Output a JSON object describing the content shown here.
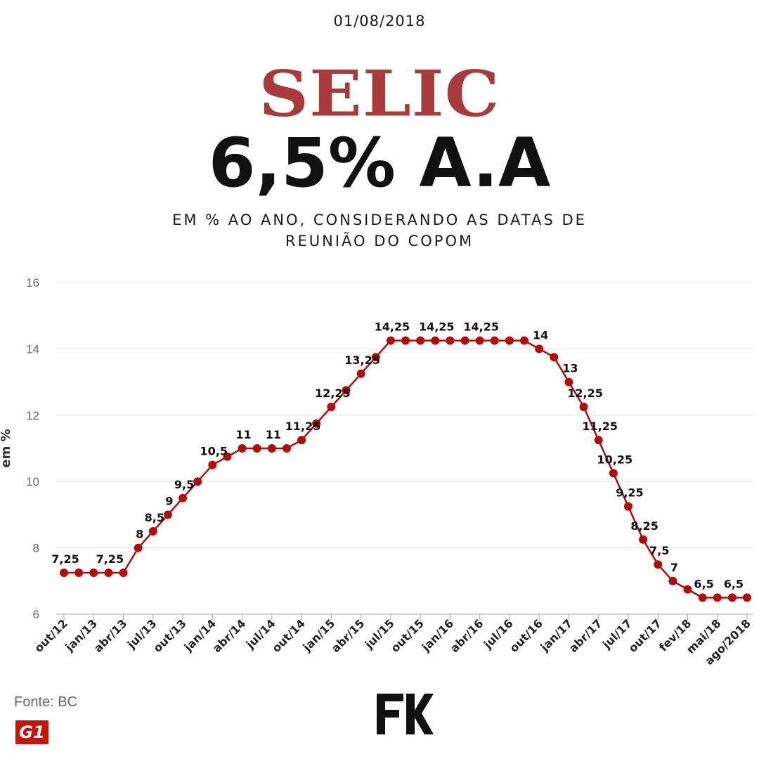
{
  "header": {
    "date": "01/08/2018",
    "title": "SELIC",
    "headline": "6,5% A.A",
    "subtitle_line1": "EM % AO ANO, CONSIDERANDO AS DATAS DE",
    "subtitle_line2": "REUNIÃO DO COPOM"
  },
  "footer": {
    "source": "Fonte: BC",
    "g1_logo_text": "G1",
    "fk_logo": "fk-logo-icon"
  },
  "colors": {
    "line": "#b00d0d",
    "title": "#a83a3c",
    "grid": "#e0e0e0"
  },
  "chart_data": {
    "type": "line",
    "ylabel": "em %",
    "xlabel": "",
    "ylim": [
      6,
      16
    ],
    "yticks": [
      6,
      8,
      10,
      12,
      14,
      16
    ],
    "grid": true,
    "x_tick_labels": [
      "out/12",
      "jan/13",
      "abr/13",
      "jul/13",
      "out/13",
      "jan/14",
      "abr/14",
      "jul/14",
      "out/14",
      "jan/15",
      "abr/15",
      "jul/15",
      "out/15",
      "jan/16",
      "abr/16",
      "jul/16",
      "out/16",
      "jan/17",
      "abr/17",
      "jul/17",
      "out/17",
      "fev/18",
      "mai/18",
      "ago/2018"
    ],
    "series": [
      {
        "values": [
          7.25,
          7.25,
          7.25,
          7.25,
          7.25,
          8,
          8.5,
          9,
          9.5,
          10,
          10.5,
          10.75,
          11,
          11,
          11,
          11,
          11.25,
          11.75,
          12.25,
          12.75,
          13.25,
          13.75,
          14.25,
          14.25,
          14.25,
          14.25,
          14.25,
          14.25,
          14.25,
          14.25,
          14.25,
          14.25,
          14,
          13.75,
          13,
          12.25,
          11.25,
          10.25,
          9.25,
          8.25,
          7.5,
          7,
          6.75,
          6.5,
          6.5,
          6.5,
          6.5
        ]
      }
    ],
    "data_labels": [
      {
        "i": 0,
        "text": "7,25"
      },
      {
        "i": 3,
        "text": "7,25"
      },
      {
        "i": 5,
        "text": "8"
      },
      {
        "i": 6,
        "text": "8,5"
      },
      {
        "i": 7,
        "text": "9"
      },
      {
        "i": 8,
        "text": "9,5"
      },
      {
        "i": 10,
        "text": "10,5"
      },
      {
        "i": 12,
        "text": "11"
      },
      {
        "i": 14,
        "text": "11"
      },
      {
        "i": 16,
        "text": "11,25"
      },
      {
        "i": 18,
        "text": "12,25"
      },
      {
        "i": 20,
        "text": "13,25"
      },
      {
        "i": 22,
        "text": "14,25"
      },
      {
        "i": 25,
        "text": "14,25"
      },
      {
        "i": 28,
        "text": "14,25"
      },
      {
        "i": 32,
        "text": "14"
      },
      {
        "i": 34,
        "text": "13"
      },
      {
        "i": 35,
        "text": "12,25"
      },
      {
        "i": 36,
        "text": "11,25"
      },
      {
        "i": 37,
        "text": "10,25"
      },
      {
        "i": 38,
        "text": "9,25"
      },
      {
        "i": 39,
        "text": "8,25"
      },
      {
        "i": 40,
        "text": "7,5"
      },
      {
        "i": 41,
        "text": "7"
      },
      {
        "i": 43,
        "text": "6,5"
      },
      {
        "i": 45,
        "text": "6,5"
      }
    ]
  }
}
